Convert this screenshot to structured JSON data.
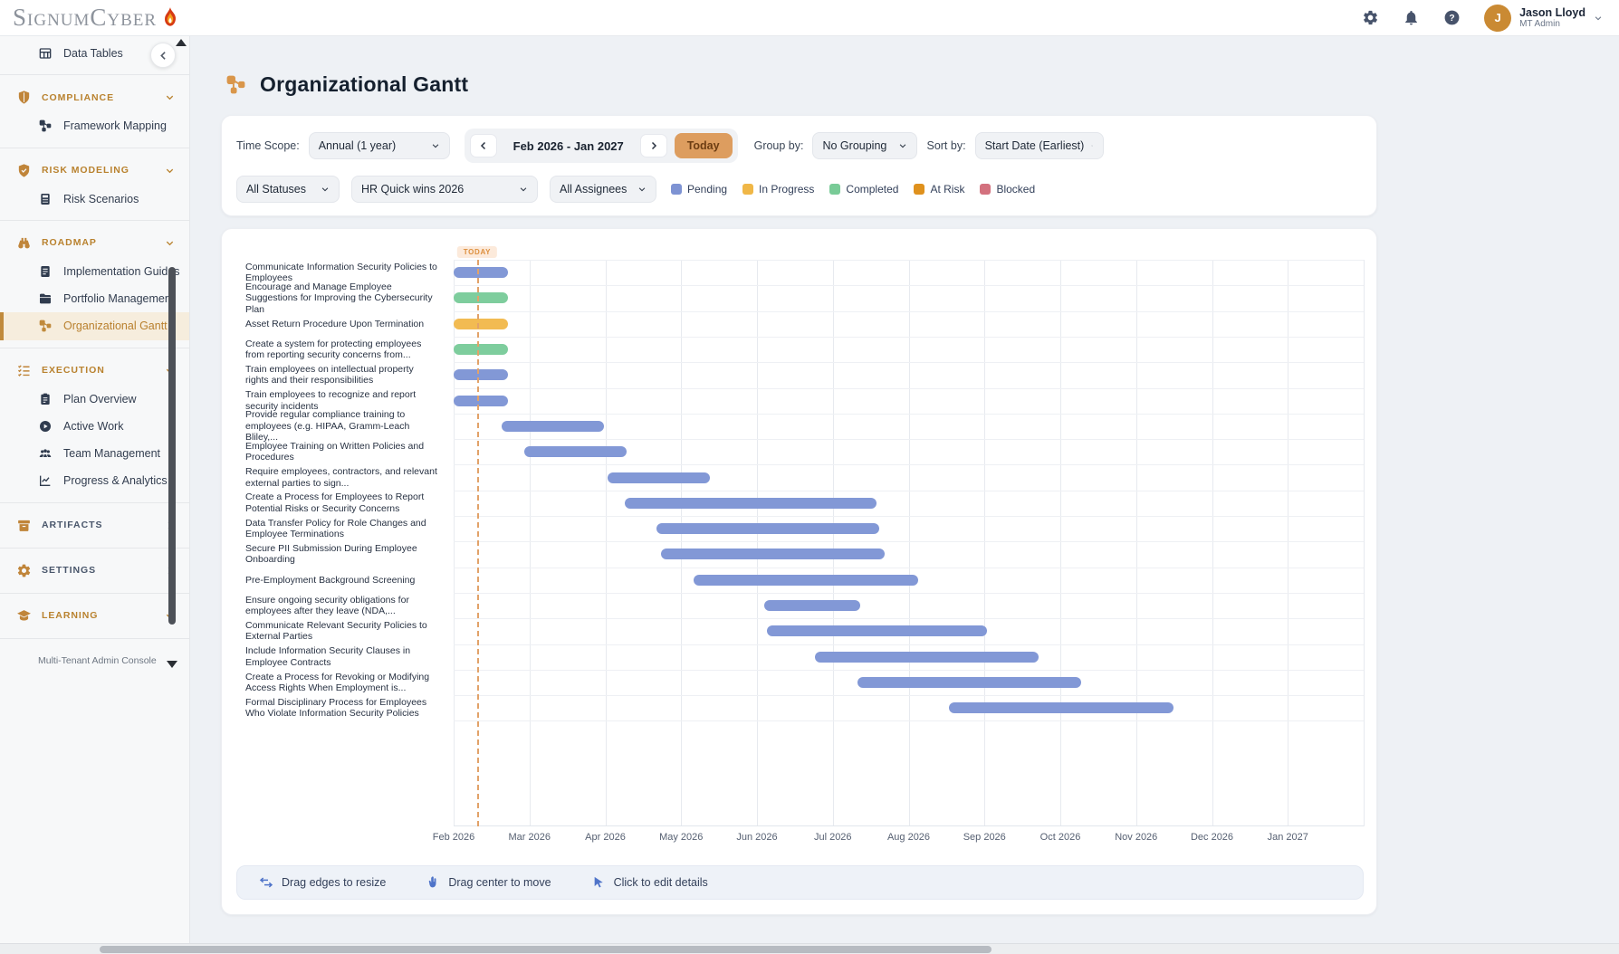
{
  "header": {
    "brand": "SignumCyber",
    "user_initial": "J",
    "user_name": "Jason Lloyd",
    "user_role": "MT Admin"
  },
  "sidebar": {
    "top_item": {
      "label": "Data Tables",
      "icon": "table-icon"
    },
    "sections": [
      {
        "label": "COMPLIANCE",
        "icon": "shield-icon",
        "expanded": true,
        "items": [
          {
            "label": "Framework Mapping",
            "icon": "framework-icon"
          }
        ]
      },
      {
        "label": "RISK MODELING",
        "icon": "shield-check-icon",
        "expanded": true,
        "items": [
          {
            "label": "Risk Scenarios",
            "icon": "calculator-icon"
          }
        ]
      },
      {
        "label": "ROADMAP",
        "icon": "binoculars-icon",
        "expanded": true,
        "items": [
          {
            "label": "Implementation Guides",
            "icon": "document-icon"
          },
          {
            "label": "Portfolio Management",
            "icon": "folder-icon"
          },
          {
            "label": "Organizational Gantt",
            "icon": "gantt-icon",
            "active": true
          }
        ]
      },
      {
        "label": "EXECUTION",
        "icon": "checklist-icon",
        "expanded": true,
        "items": [
          {
            "label": "Plan Overview",
            "icon": "clipboard-icon"
          },
          {
            "label": "Active Work",
            "icon": "play-icon"
          },
          {
            "label": "Team Management",
            "icon": "team-icon"
          },
          {
            "label": "Progress & Analytics",
            "icon": "analytics-icon"
          }
        ]
      },
      {
        "label": "ARTIFACTS",
        "icon": "archive-icon",
        "expanded": false,
        "items": []
      },
      {
        "label": "SETTINGS",
        "icon": "gear-icon",
        "expanded": false,
        "items": []
      },
      {
        "label": "LEARNING",
        "icon": "graduation-icon",
        "expanded": true,
        "items": []
      }
    ],
    "footer_item": "Multi-Tenant Admin Console"
  },
  "page": {
    "title": "Organizational Gantt"
  },
  "toolbar": {
    "time_scope_label": "Time Scope:",
    "time_scope_value": "Annual (1 year)",
    "date_range": "Feb 2026 - Jan 2027",
    "today_label": "Today",
    "group_by_label": "Group by:",
    "group_by_value": "No Grouping",
    "sort_by_label": "Sort by:",
    "sort_by_value": "Start Date (Earliest)",
    "status_filter_value": "All Statuses",
    "plan_filter_value": "HR Quick wins 2026",
    "assignee_filter_value": "All Assignees",
    "legend": [
      {
        "label": "Pending",
        "color": "#7e93d3"
      },
      {
        "label": "In Progress",
        "color": "#f0b747"
      },
      {
        "label": "Completed",
        "color": "#79cb97"
      },
      {
        "label": "At Risk",
        "color": "#df911d"
      },
      {
        "label": "Blocked",
        "color": "#d3717e"
      }
    ]
  },
  "chart_data": {
    "type": "gantt",
    "title": "Organizational Gantt",
    "x_range": "Feb 2026 - Jan 2027",
    "months": [
      "Feb 2026",
      "Mar 2026",
      "Apr 2026",
      "May 2026",
      "Jun 2026",
      "Jul 2026",
      "Aug 2026",
      "Sep 2026",
      "Oct 2026",
      "Nov 2026",
      "Dec 2026",
      "Jan 2027"
    ],
    "today": {
      "label": "TODAY",
      "position_months": 0.31
    },
    "status_colors": {
      "Pending": "#8298d6",
      "In Progress": "#f2bb52",
      "Completed": "#7ecd9d",
      "At Risk": "#df911d",
      "Blocked": "#d3717e"
    },
    "tasks": [
      {
        "label": "Communicate Information Security Policies to Employees",
        "status": "Pending",
        "start_month": 0,
        "end_month": 0.72
      },
      {
        "label": "Encourage and Manage Employee Suggestions for Improving the Cybersecurity Plan",
        "status": "Completed",
        "start_month": 0,
        "end_month": 0.72
      },
      {
        "label": "Asset Return Procedure Upon Termination",
        "status": "In Progress",
        "start_month": 0,
        "end_month": 0.72
      },
      {
        "label": "Create a system for protecting employees from reporting security concerns from...",
        "status": "Completed",
        "start_month": 0,
        "end_month": 0.72
      },
      {
        "label": "Train employees on intellectual property rights and their responsibilities",
        "status": "Pending",
        "start_month": 0,
        "end_month": 0.72
      },
      {
        "label": "Train employees to recognize and report security incidents",
        "status": "Pending",
        "start_month": 0,
        "end_month": 0.72
      },
      {
        "label": "Provide regular compliance training to employees (e.g. HIPAA, Gramm-Leach Bliley,...",
        "status": "Pending",
        "start_month": 0.63,
        "end_month": 1.98
      },
      {
        "label": "Employee Training on Written Policies and Procedures",
        "status": "Pending",
        "start_month": 0.93,
        "end_month": 2.28
      },
      {
        "label": "Require employees, contractors, and relevant external parties to sign...",
        "status": "Pending",
        "start_month": 2.03,
        "end_month": 3.38
      },
      {
        "label": "Create a Process for Employees to Report Potential Risks or Security Concerns",
        "status": "Pending",
        "start_month": 2.26,
        "end_month": 5.58
      },
      {
        "label": "Data Transfer Policy for Role Changes and Employee Terminations",
        "status": "Pending",
        "start_month": 2.67,
        "end_month": 5.61
      },
      {
        "label": "Secure PII Submission During Employee Onboarding",
        "status": "Pending",
        "start_month": 2.74,
        "end_month": 5.68
      },
      {
        "label": "Pre-Employment Background Screening",
        "status": "Pending",
        "start_month": 3.17,
        "end_month": 6.13
      },
      {
        "label": "Ensure ongoing security obligations for employees after they leave (NDA,...",
        "status": "Pending",
        "start_month": 4.1,
        "end_month": 5.36
      },
      {
        "label": "Communicate Relevant Security Policies to External Parties",
        "status": "Pending",
        "start_month": 4.13,
        "end_month": 7.03
      },
      {
        "label": "Include Information Security Clauses in Employee Contracts",
        "status": "Pending",
        "start_month": 4.76,
        "end_month": 7.71
      },
      {
        "label": "Create a Process for Revoking or Modifying Access Rights When Employment is...",
        "status": "Pending",
        "start_month": 5.32,
        "end_month": 8.27
      },
      {
        "label": "Formal Disciplinary Process for Employees Who Violate Information Security Policies",
        "status": "Pending",
        "start_month": 6.53,
        "end_month": 9.49
      }
    ]
  },
  "hints": [
    {
      "label": "Drag edges to resize",
      "icon": "resize-arrows-icon"
    },
    {
      "label": "Drag center to move",
      "icon": "hand-drag-icon"
    },
    {
      "label": "Click to edit details",
      "icon": "cursor-icon"
    }
  ]
}
